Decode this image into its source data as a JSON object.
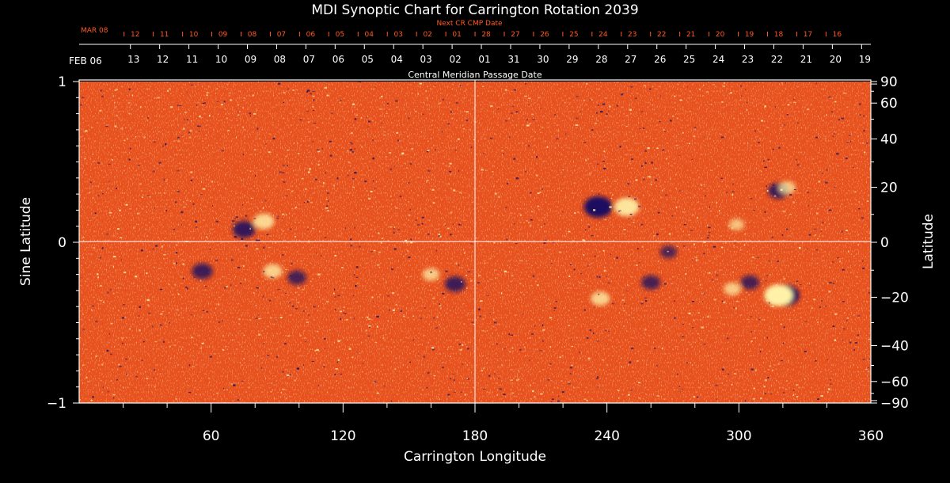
{
  "chart_data": {
    "type": "heatmap",
    "title": "MDI Synoptic Chart for Carrington Rotation 2039",
    "xlabel": "Carrington Longitude",
    "ylabel_left": "Sine Latitude",
    "ylabel_right": "Latitude",
    "xlim": [
      0,
      360
    ],
    "ylim": [
      -1,
      1
    ],
    "x_ticks": [
      "60",
      "120",
      "180",
      "240",
      "300",
      "360"
    ],
    "x_tick_values": [
      60,
      120,
      180,
      240,
      300,
      360
    ],
    "y_left_ticks": [
      "1",
      "0",
      "−1"
    ],
    "y_left_tick_values": [
      1,
      0,
      -1
    ],
    "y_right_ticks": [
      "90",
      "60",
      "40",
      "20",
      "0",
      "−20",
      "−40",
      "−60",
      "−90"
    ],
    "y_right_tick_latitudes": [
      90,
      60,
      40,
      20,
      0,
      -20,
      -40,
      -60,
      -90
    ],
    "cmp_axis_label": "Central Meridian Passage Date",
    "cmp_start_label": "FEB 06",
    "cmp_dates": [
      "13",
      "12",
      "11",
      "10",
      "09",
      "08",
      "07",
      "06",
      "05",
      "04",
      "03",
      "02",
      "01",
      "31",
      "30",
      "29",
      "28",
      "27",
      "26",
      "25",
      "24",
      "23",
      "22",
      "21",
      "20",
      "19"
    ],
    "cmp_first_longitude": 23.3,
    "cmp_step_degrees": 13.3,
    "next_cr_axis_label": "Next CR CMP Date",
    "next_cr_start_label": "MAR 08",
    "next_cr_dates": [
      "12",
      "11",
      "10",
      "09",
      "08",
      "07",
      "06",
      "05",
      "04",
      "03",
      "02",
      "01",
      "28",
      "27",
      "26",
      "25",
      "24",
      "23",
      "22",
      "21",
      "20",
      "19",
      "18",
      "17",
      "16"
    ],
    "next_cr_first_longitude": 23.3,
    "next_cr_step_degrees": 13.3,
    "grid": "crosshair at 180 longitude and 0 latitude",
    "colors": {
      "background": "#000000",
      "axis": "#ffffff",
      "secondary_axis_text": "#ff5a1e",
      "field_base": "#e8501c",
      "positive_polarity": "#fff2a8",
      "negative_polarity": "#1a1060"
    },
    "active_regions": [
      {
        "polarity": "negative",
        "lon": 236,
        "sinlat": 0.22,
        "strength": 1.0
      },
      {
        "polarity": "positive",
        "lon": 249,
        "sinlat": 0.22,
        "strength": 0.8
      },
      {
        "polarity": "negative",
        "lon": 321,
        "sinlat": -0.33,
        "strength": 1.0
      },
      {
        "polarity": "positive",
        "lon": 318,
        "sinlat": -0.33,
        "strength": 1.0
      },
      {
        "polarity": "negative",
        "lon": 305,
        "sinlat": -0.25,
        "strength": 0.5
      },
      {
        "polarity": "positive",
        "lon": 297,
        "sinlat": -0.29,
        "strength": 0.4
      },
      {
        "polarity": "negative",
        "lon": 318,
        "sinlat": 0.32,
        "strength": 0.6
      },
      {
        "polarity": "positive",
        "lon": 322,
        "sinlat": 0.34,
        "strength": 0.4
      },
      {
        "polarity": "negative",
        "lon": 75,
        "sinlat": 0.08,
        "strength": 0.7
      },
      {
        "polarity": "positive",
        "lon": 84,
        "sinlat": 0.13,
        "strength": 0.6
      },
      {
        "polarity": "negative",
        "lon": 56,
        "sinlat": -0.18,
        "strength": 0.6
      },
      {
        "polarity": "negative",
        "lon": 99,
        "sinlat": -0.22,
        "strength": 0.5
      },
      {
        "polarity": "positive",
        "lon": 88,
        "sinlat": -0.18,
        "strength": 0.5
      },
      {
        "polarity": "negative",
        "lon": 171,
        "sinlat": -0.26,
        "strength": 0.6
      },
      {
        "polarity": "positive",
        "lon": 160,
        "sinlat": -0.2,
        "strength": 0.4
      },
      {
        "polarity": "positive",
        "lon": 237,
        "sinlat": -0.35,
        "strength": 0.5
      },
      {
        "polarity": "negative",
        "lon": 260,
        "sinlat": -0.25,
        "strength": 0.5
      },
      {
        "polarity": "negative",
        "lon": 268,
        "sinlat": -0.06,
        "strength": 0.4
      },
      {
        "polarity": "positive",
        "lon": 299,
        "sinlat": 0.11,
        "strength": 0.3
      }
    ]
  }
}
